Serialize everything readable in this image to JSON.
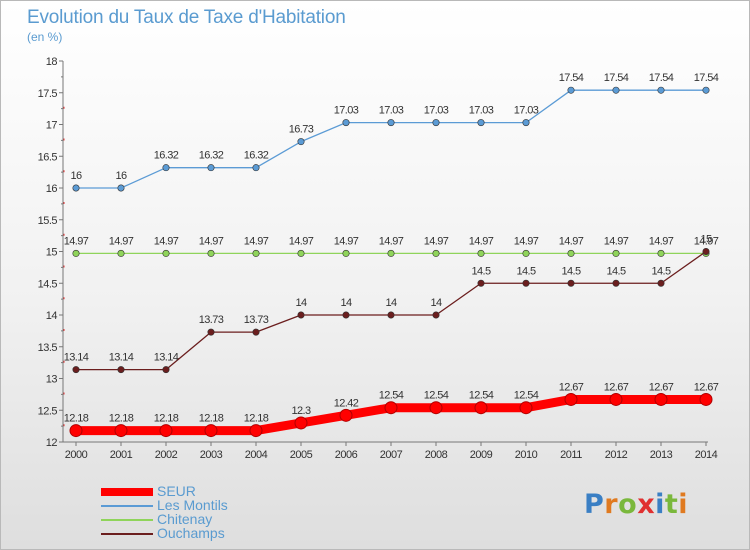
{
  "page": {
    "title": "Evolution du Taux de Taxe d'Habitation",
    "unit_label": "(en %)",
    "logo": "Proxiti"
  },
  "chart_data": {
    "type": "line",
    "title": "Evolution du Taux de Taxe d'Habitation",
    "ylabel": "(en %)",
    "xlabel": "",
    "ylim": [
      12,
      18
    ],
    "yticks": [
      "12",
      "12.5",
      "13",
      "13.5",
      "14",
      "14.5",
      "15",
      "15.5",
      "16",
      "16.5",
      "17",
      "17.5",
      "18"
    ],
    "categories": [
      "2000",
      "2001",
      "2002",
      "2003",
      "2004",
      "2005",
      "2006",
      "2007",
      "2008",
      "2009",
      "2010",
      "2011",
      "2012",
      "2013",
      "2014"
    ],
    "grid": false,
    "legend_position": "bottom-left",
    "series": [
      {
        "name": "SEUR",
        "color": "#ff0000",
        "values": [
          12.18,
          12.18,
          12.18,
          12.18,
          12.18,
          12.3,
          12.42,
          12.54,
          12.54,
          12.54,
          12.54,
          12.67,
          12.67,
          12.67,
          12.67
        ],
        "labels": [
          "12.18",
          "12.18",
          "12.18",
          "12.18",
          "12.18",
          "12.3",
          "12.42",
          "12.54",
          "12.54",
          "12.54",
          "12.54",
          "12.67",
          "12.67",
          "12.67",
          "12.67"
        ]
      },
      {
        "name": "Les Montils",
        "color": "#5b9bd5",
        "values": [
          16,
          16,
          16.32,
          16.32,
          16.32,
          16.73,
          17.03,
          17.03,
          17.03,
          17.03,
          17.03,
          17.54,
          17.54,
          17.54,
          17.54
        ],
        "labels": [
          "16",
          "16",
          "16.32",
          "16.32",
          "16.32",
          "16.73",
          "17.03",
          "17.03",
          "17.03",
          "17.03",
          "17.03",
          "17.54",
          "17.54",
          "17.54",
          "17.54"
        ]
      },
      {
        "name": "Chitenay",
        "color": "#8fd45a",
        "values": [
          14.97,
          14.97,
          14.97,
          14.97,
          14.97,
          14.97,
          14.97,
          14.97,
          14.97,
          14.97,
          14.97,
          14.97,
          14.97,
          14.97,
          14.97
        ],
        "labels": [
          "14.97",
          "14.97",
          "14.97",
          "14.97",
          "14.97",
          "14.97",
          "14.97",
          "14.97",
          "14.97",
          "14.97",
          "14.97",
          "14.97",
          "14.97",
          "14.97",
          "14.97"
        ]
      },
      {
        "name": "Ouchamps",
        "color": "#6b1e1e",
        "values": [
          13.14,
          13.14,
          13.14,
          13.73,
          13.73,
          14,
          14,
          14,
          14,
          14.5,
          14.5,
          14.5,
          14.5,
          14.5,
          15
        ],
        "labels": [
          "13.14",
          "13.14",
          "13.14",
          "13.73",
          "13.73",
          "14",
          "14",
          "14",
          "14",
          "14.5",
          "14.5",
          "14.5",
          "14.5",
          "14.5",
          "15"
        ]
      }
    ]
  }
}
